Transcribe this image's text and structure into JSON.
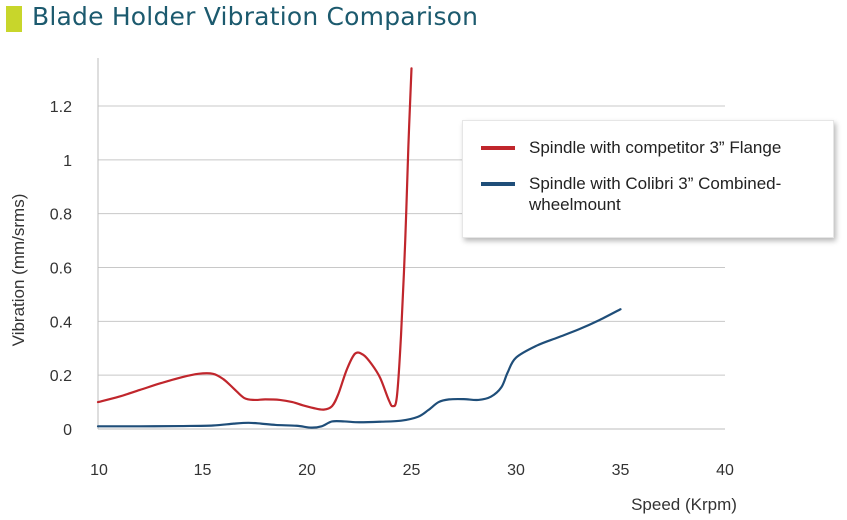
{
  "header": {
    "title": "Blade Holder Vibration Comparison",
    "accent_color": "#c8d62b",
    "title_color": "#1c5a6e"
  },
  "chart_data": {
    "type": "line",
    "title": "Blade Holder Vibration Comparison",
    "xlabel": "Speed (Krpm)",
    "ylabel": "Vibration (mm/srms)",
    "xlim": [
      10,
      40
    ],
    "ylim": [
      0,
      1.3
    ],
    "xticks": [
      "10",
      "15",
      "20",
      "25",
      "30",
      "35",
      "40"
    ],
    "yticks": [
      "0",
      "0.2",
      "0.4",
      "0.6",
      "0.8",
      "1",
      "1.2"
    ],
    "grid": "horizontal",
    "legend_position": "top-right",
    "series": [
      {
        "name": "Spindle with competitor 3” Flange",
        "color": "#c0262c",
        "points": [
          [
            10.0,
            0.1
          ],
          [
            11.0,
            0.12
          ],
          [
            12.0,
            0.145
          ],
          [
            13.0,
            0.17
          ],
          [
            14.0,
            0.192
          ],
          [
            14.8,
            0.205
          ],
          [
            15.5,
            0.205
          ],
          [
            16.0,
            0.185
          ],
          [
            16.5,
            0.15
          ],
          [
            17.0,
            0.115
          ],
          [
            17.5,
            0.108
          ],
          [
            18.0,
            0.11
          ],
          [
            18.7,
            0.108
          ],
          [
            19.3,
            0.1
          ],
          [
            19.8,
            0.088
          ],
          [
            20.3,
            0.078
          ],
          [
            20.8,
            0.072
          ],
          [
            21.2,
            0.085
          ],
          [
            21.5,
            0.13
          ],
          [
            21.9,
            0.22
          ],
          [
            22.3,
            0.28
          ],
          [
            22.7,
            0.275
          ],
          [
            23.1,
            0.24
          ],
          [
            23.5,
            0.19
          ],
          [
            23.9,
            0.11
          ],
          [
            24.1,
            0.085
          ],
          [
            24.3,
            0.12
          ],
          [
            24.5,
            0.35
          ],
          [
            24.7,
            0.7
          ],
          [
            24.85,
            1.05
          ],
          [
            25.0,
            1.34
          ]
        ]
      },
      {
        "name": "Spindle with Colibri 3” Combined-wheelmount",
        "color": "#1f4e79",
        "points": [
          [
            10.0,
            0.01
          ],
          [
            12.0,
            0.01
          ],
          [
            14.0,
            0.011
          ],
          [
            15.5,
            0.013
          ],
          [
            16.5,
            0.02
          ],
          [
            17.2,
            0.023
          ],
          [
            17.8,
            0.02
          ],
          [
            18.5,
            0.015
          ],
          [
            19.5,
            0.012
          ],
          [
            20.2,
            0.005
          ],
          [
            20.7,
            0.01
          ],
          [
            21.2,
            0.028
          ],
          [
            21.8,
            0.028
          ],
          [
            22.5,
            0.025
          ],
          [
            23.5,
            0.027
          ],
          [
            24.5,
            0.031
          ],
          [
            25.3,
            0.045
          ],
          [
            25.8,
            0.07
          ],
          [
            26.3,
            0.1
          ],
          [
            26.8,
            0.11
          ],
          [
            27.5,
            0.111
          ],
          [
            28.2,
            0.108
          ],
          [
            28.8,
            0.12
          ],
          [
            29.3,
            0.155
          ],
          [
            29.6,
            0.21
          ],
          [
            30.0,
            0.265
          ],
          [
            31.0,
            0.31
          ],
          [
            32.0,
            0.34
          ],
          [
            33.0,
            0.37
          ],
          [
            34.0,
            0.405
          ],
          [
            35.0,
            0.445
          ]
        ]
      }
    ]
  }
}
